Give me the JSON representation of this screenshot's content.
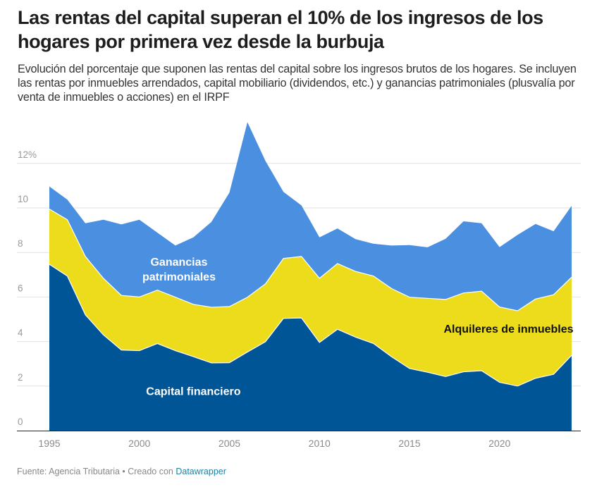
{
  "title": "Las rentas del capital superan el 10% de los ingresos de los hogares por primera vez desde la burbuja",
  "subtitle": "Evolución del porcentaje que suponen las rentas del capital sobre los ingresos brutos de los hogares. Se incluyen las rentas por inmuebles arrendados, capital mobiliario (dividendos, etc.) y ganancias patrimoniales (plusvalía por venta de inmuebles o acciones) en el IRPF",
  "footer": {
    "source": "Fuente: Agencia Tributaria • Creado con ",
    "tool_link": "Datawrapper"
  },
  "chart_data": {
    "type": "area",
    "stacked": true,
    "title": "Las rentas del capital superan el 10% de los ingresos de los hogares por primera vez desde la burbuja",
    "xlabel": "",
    "ylabel": "",
    "x": [
      1995,
      1996,
      1997,
      1998,
      1999,
      2000,
      2001,
      2002,
      2003,
      2004,
      2005,
      2006,
      2007,
      2008,
      2009,
      2010,
      2011,
      2012,
      2013,
      2014,
      2015,
      2016,
      2017,
      2018,
      2019,
      2020,
      2021,
      2022,
      2023,
      2024
    ],
    "xticks": [
      "1995",
      "2000",
      "2005",
      "2010",
      "2015",
      "2020"
    ],
    "xtick_values": [
      1995,
      2000,
      2005,
      2010,
      2015,
      2020
    ],
    "yticks": [
      "0",
      "2",
      "4",
      "6",
      "8",
      "10",
      "12%"
    ],
    "ytick_values": [
      0,
      2,
      4,
      6,
      8,
      10,
      12
    ],
    "ylim": [
      0,
      14
    ],
    "grid": true,
    "legend": "inline labels",
    "series": [
      {
        "name": "Capital financiero",
        "color": "#005596",
        "label_color": "#ffffff",
        "values": [
          7.47,
          6.94,
          5.2,
          4.3,
          3.62,
          3.59,
          3.91,
          3.59,
          3.32,
          3.04,
          3.05,
          3.53,
          3.99,
          5.04,
          5.06,
          3.96,
          4.55,
          4.2,
          3.91,
          3.32,
          2.79,
          2.62,
          2.43,
          2.64,
          2.69,
          2.17,
          2.0,
          2.35,
          2.53,
          3.38
        ]
      },
      {
        "name": "Alquileres de inmuebles",
        "color": "#ecdc1b",
        "label_color": "#111111",
        "values": [
          2.48,
          2.53,
          2.62,
          2.54,
          2.45,
          2.41,
          2.4,
          2.4,
          2.35,
          2.5,
          2.52,
          2.46,
          2.6,
          2.69,
          2.76,
          2.88,
          2.95,
          2.95,
          3.03,
          3.06,
          3.2,
          3.32,
          3.46,
          3.54,
          3.57,
          3.38,
          3.38,
          3.56,
          3.57,
          3.51
        ]
      },
      {
        "name": "Ganancias patrimoniales",
        "label_lines": [
          "Ganancias",
          "patrimoniales"
        ],
        "color": "#4a8fe0",
        "label_color": "#ffffff",
        "values": [
          1.01,
          0.9,
          1.49,
          2.63,
          3.19,
          3.47,
          2.58,
          2.32,
          3.01,
          3.83,
          5.12,
          7.86,
          5.52,
          2.99,
          2.29,
          1.84,
          1.58,
          1.45,
          1.45,
          1.93,
          2.34,
          2.29,
          2.72,
          3.22,
          3.05,
          2.69,
          3.41,
          3.37,
          2.85,
          3.2
        ]
      }
    ],
    "annotations": [
      {
        "text": "Capital financiero",
        "series": 0,
        "x": 2003,
        "y": 1.6
      },
      {
        "text": "Alquileres de inmuebles",
        "series": 1,
        "x": 2020.5,
        "y": 4.4
      },
      {
        "text": "Ganancias patrimoniales",
        "series": 2,
        "x": 2002.2,
        "y": 7.4
      }
    ]
  }
}
